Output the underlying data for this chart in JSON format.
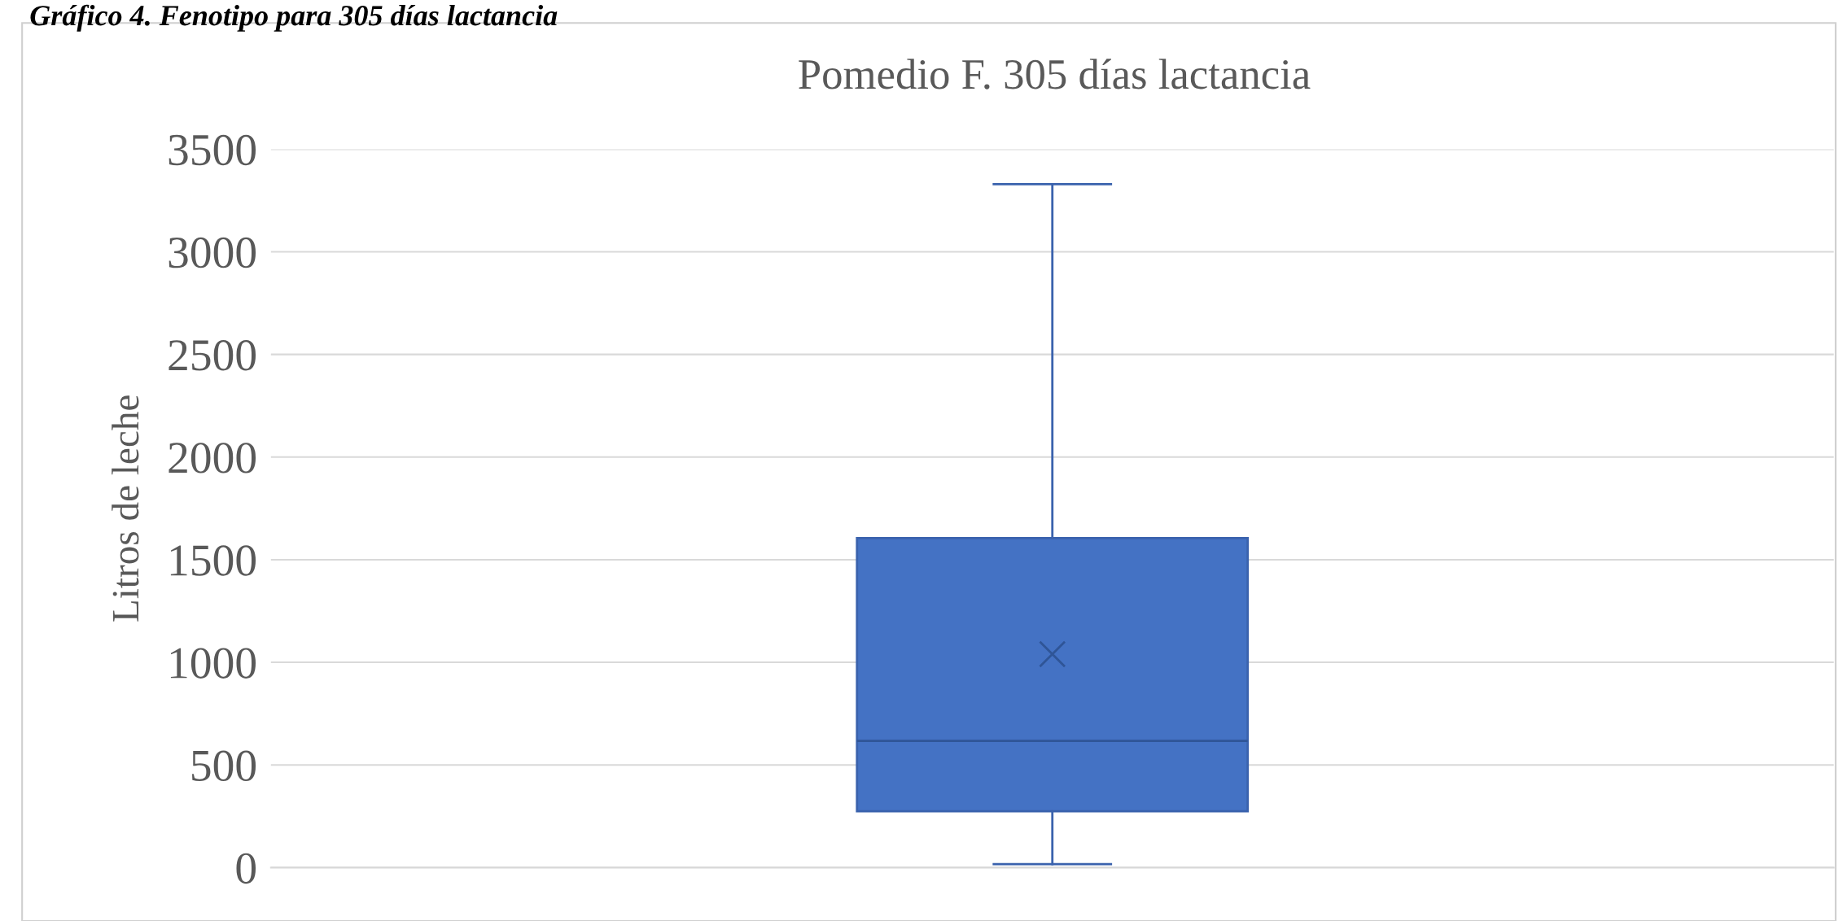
{
  "chart_data": {
    "type": "box",
    "title": "Pomedio F. 305 días lactancia",
    "ylabel": "Litros de leche",
    "annotations": [
      "Gráfico 4. Fenotipo para 305 días lactancia"
    ],
    "categories": [
      null
    ],
    "color": "#4472c4",
    "boxes": [
      {
        "low": 17,
        "q1": 274,
        "median": 617,
        "q3": 1605,
        "high": 3330,
        "mean": 1040
      }
    ],
    "ylim": [
      0,
      3500
    ],
    "yticks": [
      0,
      500,
      1000,
      1500,
      2000,
      2500,
      3000,
      3500
    ],
    "grid": "y",
    "marker": "cross"
  }
}
